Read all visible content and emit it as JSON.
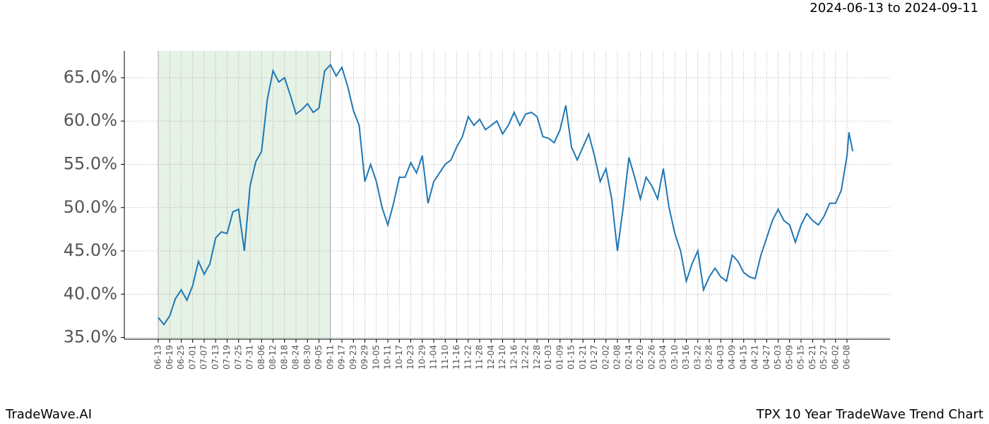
{
  "chart_data": {
    "type": "line",
    "subtitle": "2024-06-13 to 2024-09-11",
    "footer_left": "TradeWave.AI",
    "footer_right": "TPX 10 Year TradeWave Trend Chart",
    "color": "#1f77b4",
    "highlight": {
      "start": "06-13",
      "end": "09-11",
      "color": "#e6f2e6"
    },
    "grid": true,
    "x": [
      "06-13",
      "06-16",
      "06-19",
      "06-22",
      "06-25",
      "06-28",
      "07-01",
      "07-04",
      "07-07",
      "07-10",
      "07-13",
      "07-16",
      "07-19",
      "07-22",
      "07-25",
      "07-28",
      "07-31",
      "08-03",
      "08-06",
      "08-09",
      "08-12",
      "08-15",
      "08-18",
      "08-21",
      "08-24",
      "08-27",
      "08-30",
      "09-02",
      "09-05",
      "09-08",
      "09-11",
      "09-14",
      "09-17",
      "09-20",
      "09-23",
      "09-26",
      "09-29",
      "10-02",
      "10-05",
      "10-08",
      "10-11",
      "10-14",
      "10-17",
      "10-20",
      "10-23",
      "10-26",
      "10-29",
      "11-01",
      "11-04",
      "11-07",
      "11-10",
      "11-13",
      "11-16",
      "11-19",
      "11-22",
      "11-25",
      "11-28",
      "12-01",
      "12-04",
      "12-07",
      "12-10",
      "12-13",
      "12-16",
      "12-19",
      "12-22",
      "12-25",
      "12-28",
      "12-31",
      "01-03",
      "01-06",
      "01-09",
      "01-12",
      "01-15",
      "01-18",
      "01-21",
      "01-24",
      "01-27",
      "01-30",
      "02-02",
      "02-05",
      "02-08",
      "02-11",
      "02-14",
      "02-17",
      "02-20",
      "02-23",
      "02-26",
      "03-01",
      "03-04",
      "03-07",
      "03-10",
      "03-13",
      "03-16",
      "03-19",
      "03-22",
      "03-25",
      "03-28",
      "03-31",
      "04-03",
      "04-06",
      "04-09",
      "04-12",
      "04-15",
      "04-18",
      "04-21",
      "04-24",
      "04-27",
      "04-30",
      "05-03",
      "05-06",
      "05-09",
      "05-12",
      "05-15",
      "05-18",
      "05-21",
      "05-24",
      "05-27",
      "05-30",
      "06-02",
      "06-05",
      "06-08",
      "06-09",
      "06-11"
    ],
    "values": [
      37.3,
      36.5,
      37.5,
      39.5,
      40.5,
      39.3,
      41.0,
      43.8,
      42.3,
      43.5,
      46.5,
      47.2,
      47.0,
      49.5,
      49.8,
      45.0,
      52.5,
      55.3,
      56.5,
      62.5,
      65.8,
      64.5,
      65.0,
      63.0,
      60.8,
      61.3,
      62.0,
      61.0,
      61.5,
      65.8,
      66.5,
      65.2,
      66.2,
      64.0,
      61.2,
      59.5,
      53.0,
      55.0,
      53.0,
      50.0,
      48.0,
      50.5,
      53.5,
      53.5,
      55.2,
      54.0,
      56.0,
      50.5,
      53.0,
      54.0,
      55.0,
      55.5,
      57.0,
      58.2,
      60.5,
      59.5,
      60.2,
      59.0,
      59.5,
      60.0,
      58.5,
      59.5,
      61.0,
      59.5,
      60.8,
      61.0,
      60.5,
      58.2,
      58.0,
      57.5,
      59.0,
      61.8,
      57.0,
      55.5,
      57.0,
      58.5,
      56.0,
      53.0,
      54.5,
      51.0,
      45.0,
      50.0,
      55.8,
      53.5,
      51.0,
      53.5,
      52.5,
      51.0,
      54.5,
      50.0,
      47.0,
      45.0,
      41.5,
      43.5,
      45.0,
      40.5,
      42.0,
      43.0,
      42.0,
      41.5,
      44.5,
      43.8,
      42.5,
      42.0,
      41.8,
      44.5,
      46.5,
      48.5,
      49.8,
      48.5,
      48.0,
      46.0,
      48.0,
      49.3,
      48.5,
      48.0,
      49.0,
      50.5,
      50.5,
      52.0,
      56.0,
      58.7,
      56.5
    ],
    "xticks": [
      "06-13",
      "06-19",
      "06-25",
      "07-01",
      "07-07",
      "07-13",
      "07-19",
      "07-25",
      "07-31",
      "08-06",
      "08-12",
      "08-18",
      "08-24",
      "08-30",
      "09-05",
      "09-11",
      "09-17",
      "09-23",
      "09-29",
      "10-05",
      "10-11",
      "10-17",
      "10-23",
      "10-29",
      "11-04",
      "11-10",
      "11-16",
      "11-22",
      "11-28",
      "12-04",
      "12-10",
      "12-16",
      "12-22",
      "12-28",
      "01-03",
      "01-09",
      "01-15",
      "01-21",
      "01-27",
      "02-02",
      "02-08",
      "02-14",
      "02-20",
      "02-26",
      "03-04",
      "03-10",
      "03-16",
      "03-22",
      "03-28",
      "04-03",
      "04-09",
      "04-15",
      "04-21",
      "04-27",
      "05-03",
      "05-09",
      "05-15",
      "05-21",
      "05-27",
      "06-02",
      "06-08"
    ],
    "ylim": [
      34.8,
      68.1
    ],
    "yticks": [
      {
        "value": 35,
        "label": "35.0%"
      },
      {
        "value": 40,
        "label": "40.0%"
      },
      {
        "value": 45,
        "label": "45.0%"
      },
      {
        "value": 50,
        "label": "50.0%"
      },
      {
        "value": 55,
        "label": "55.0%"
      },
      {
        "value": 60,
        "label": "60.0%"
      },
      {
        "value": 65,
        "label": "65.0%"
      }
    ]
  }
}
